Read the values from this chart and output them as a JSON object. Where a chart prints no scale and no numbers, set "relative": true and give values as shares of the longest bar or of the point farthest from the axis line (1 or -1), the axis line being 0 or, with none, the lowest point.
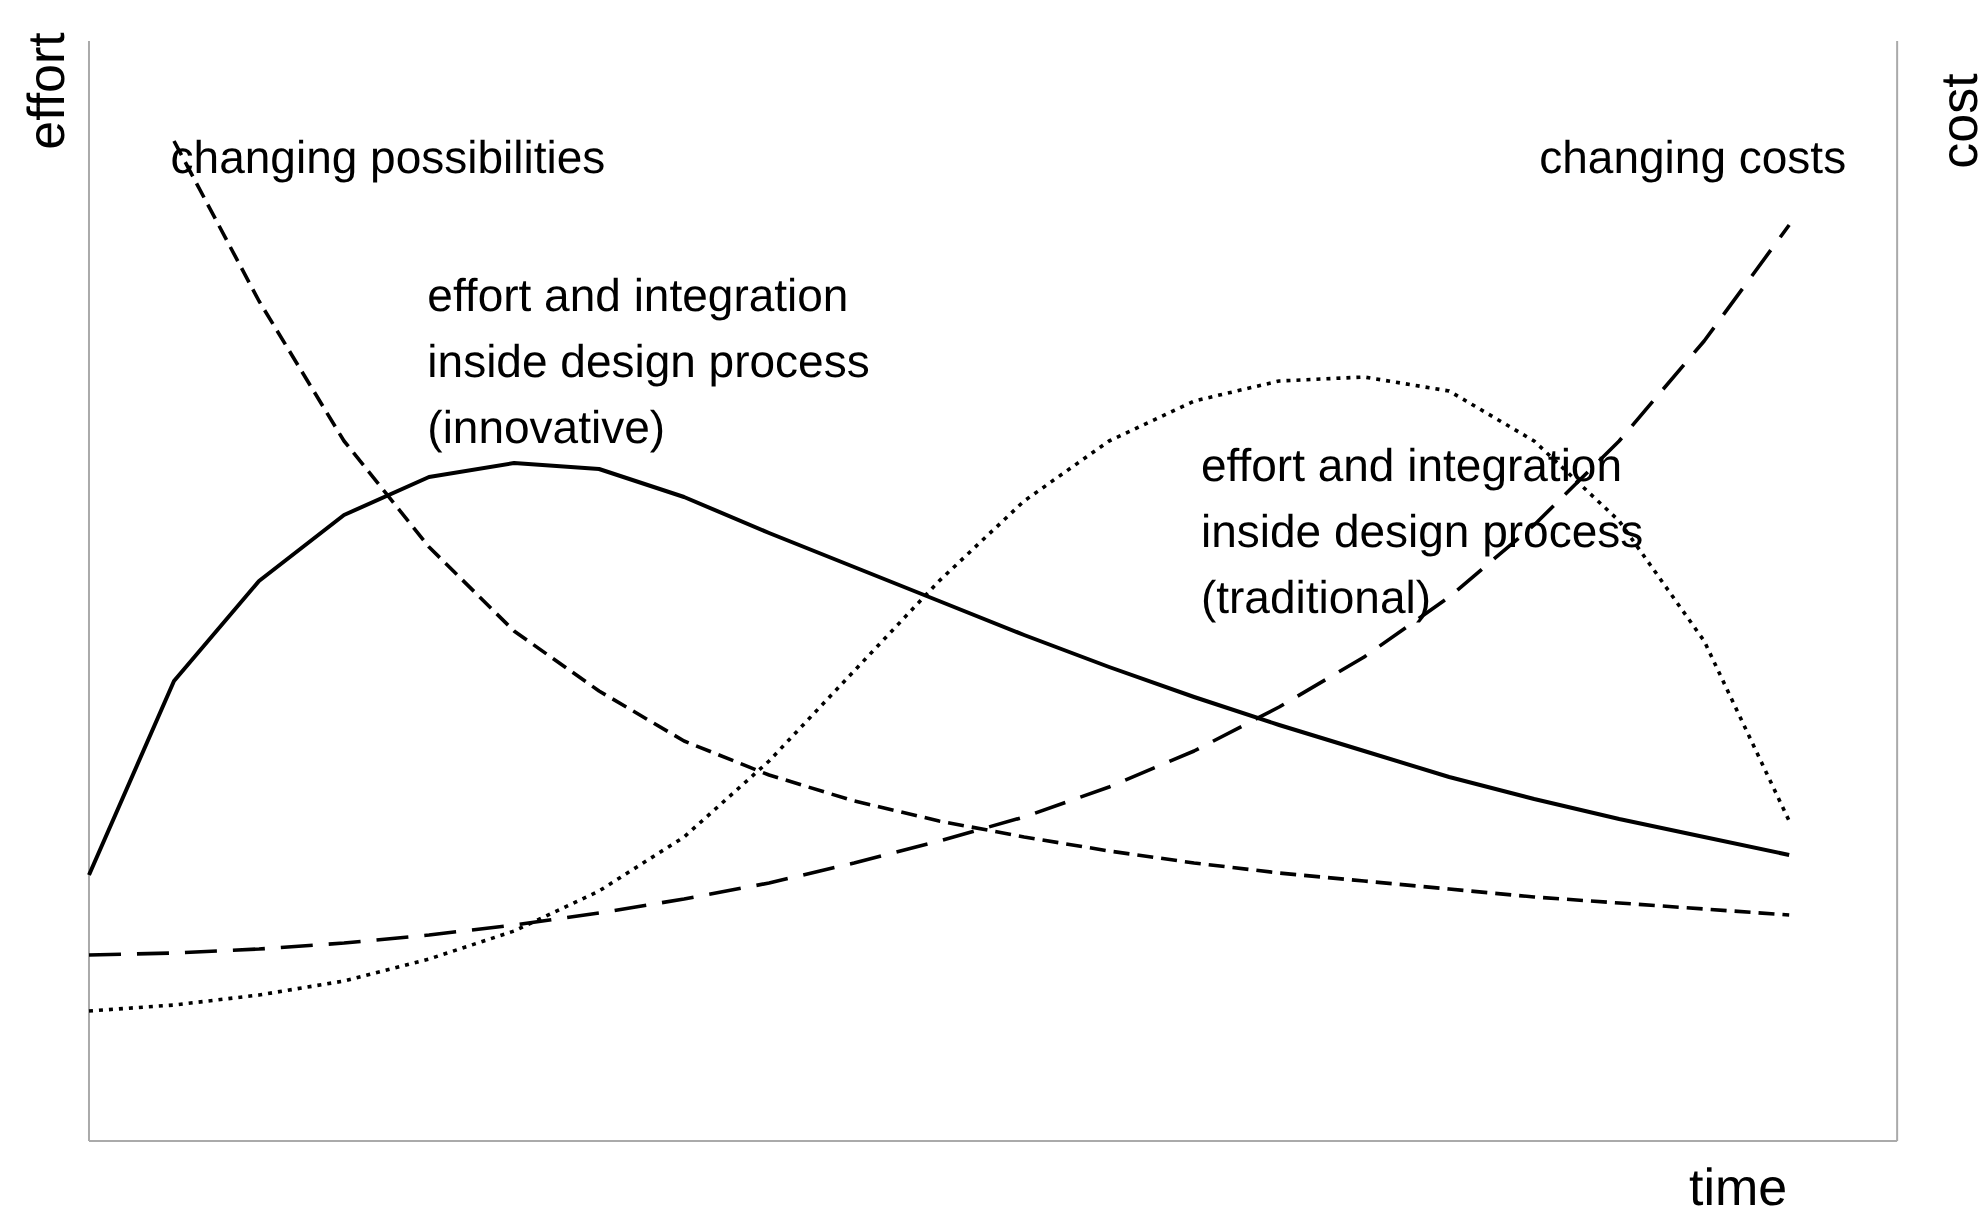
{
  "chart_data": {
    "type": "line",
    "relative": true,
    "xlabel": "time",
    "ylabel": "effort",
    "y2label": "cost",
    "categories": [
      null,
      null,
      null,
      null,
      null,
      null,
      null,
      null,
      null,
      null,
      null,
      null,
      null,
      null,
      null,
      null,
      null,
      null,
      null,
      null,
      null,
      null
    ],
    "series": [
      {
        "name": "effort and integration\ninside design process\n(innovative)",
        "color": "#000000",
        "line_style": "solid",
        "values": [
          0.266,
          0.46,
          0.56,
          0.626,
          0.664,
          0.678,
          0.672,
          0.644,
          0.608,
          0.574,
          0.54,
          0.506,
          0.474,
          0.444,
          0.416,
          0.39,
          0.364,
          0.342,
          0.322,
          0.304,
          0.286,
          null
        ]
      },
      {
        "name": "changing possibilities",
        "color": "#000000",
        "line_style": "dashed",
        "values": [
          null,
          1.0,
          0.84,
          0.7,
          0.594,
          0.51,
          0.45,
          0.4,
          0.366,
          0.34,
          0.32,
          0.304,
          0.29,
          0.278,
          0.268,
          0.26,
          0.252,
          0.244,
          0.238,
          0.232,
          0.226,
          null
        ]
      },
      {
        "name": "changing costs",
        "color": "#000000",
        "line_style": "dashed",
        "values": [
          0.186,
          0.188,
          0.192,
          0.198,
          0.206,
          0.216,
          0.228,
          0.242,
          0.258,
          0.278,
          0.3,
          0.324,
          0.354,
          0.39,
          0.434,
          0.484,
          0.544,
          0.616,
          0.7,
          0.8,
          0.916,
          null
        ]
      },
      {
        "name": "effort and integration\ninside design process\n(traditional)",
        "color": "#000000",
        "line_style": "dotted",
        "values": [
          0.13,
          0.136,
          0.146,
          0.16,
          0.182,
          0.21,
          0.25,
          0.304,
          0.38,
          0.47,
          0.56,
          0.64,
          0.7,
          0.74,
          0.76,
          0.764,
          0.75,
          0.7,
          0.62,
          0.5,
          0.32,
          null
        ]
      }
    ]
  }
}
